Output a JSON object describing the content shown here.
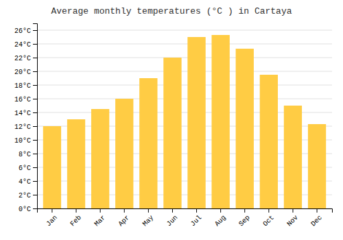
{
  "chart_data": {
    "type": "bar",
    "title": "Average monthly temperatures (°C ) in Cartaya",
    "categories": [
      "Jan",
      "Feb",
      "Mar",
      "Apr",
      "May",
      "Jun",
      "Jul",
      "Aug",
      "Sep",
      "Oct",
      "Nov",
      "Dec"
    ],
    "values": [
      12,
      13,
      14.5,
      16,
      19,
      22,
      25,
      25.3,
      23.3,
      19.5,
      15,
      12.3
    ],
    "color": "#FFCC44",
    "ylim": [
      0,
      27
    ],
    "yticks": [
      {
        "value": 0,
        "label": "0°C"
      },
      {
        "value": 2,
        "label": "2°C"
      },
      {
        "value": 4,
        "label": "4°C"
      },
      {
        "value": 6,
        "label": "6°C"
      },
      {
        "value": 8,
        "label": "8°C"
      },
      {
        "value": 10,
        "label": "10°C"
      },
      {
        "value": 12,
        "label": "12°C"
      },
      {
        "value": 14,
        "label": "14°C"
      },
      {
        "value": 16,
        "label": "16°C"
      },
      {
        "value": 18,
        "label": "18°C"
      },
      {
        "value": 20,
        "label": "20°C"
      },
      {
        "value": 22,
        "label": "22°C"
      },
      {
        "value": 24,
        "label": "24°C"
      },
      {
        "value": 26,
        "label": "26°C"
      }
    ],
    "grid": true
  }
}
